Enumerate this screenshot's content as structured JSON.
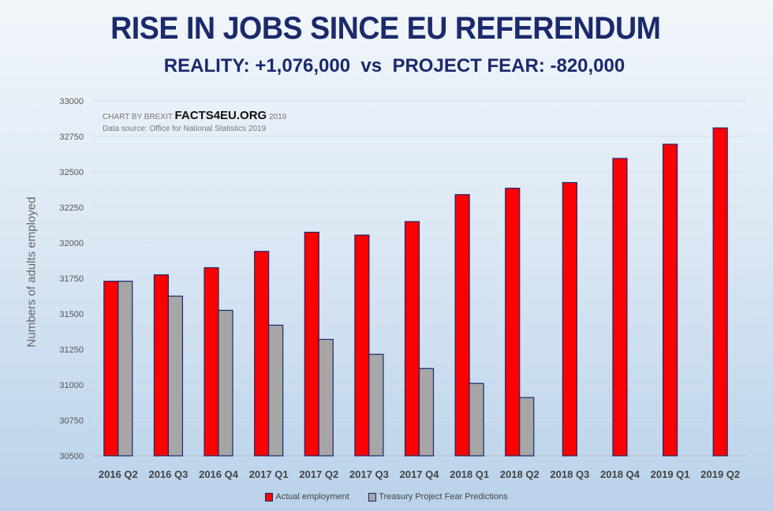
{
  "chart_data": {
    "type": "bar",
    "title": "RISE IN JOBS SINCE EU REFERENDUM",
    "subtitle": "REALITY: +1,076,000  vs  PROJECT FEAR: -820,000",
    "credit_prefix": "CHART BY BREXIT",
    "credit_brand": "FACTS4EU.ORG",
    "credit_year": "2019",
    "source": "Data source: Office for National Statistics 2019",
    "xlabel": "",
    "ylabel": "Numbers of adults employed",
    "ylim": [
      30500,
      33000
    ],
    "yticks": [
      30500,
      30750,
      31000,
      31250,
      31500,
      31750,
      32000,
      32250,
      32500,
      32750,
      33000
    ],
    "grid": true,
    "legend_position": "bottom",
    "categories": [
      "2016 Q2",
      "2016 Q3",
      "2016 Q4",
      "2017 Q1",
      "2017 Q2",
      "2017 Q3",
      "2017 Q4",
      "2018 Q1",
      "2018 Q2",
      "2018 Q3",
      "2018 Q4",
      "2019 Q1",
      "2019 Q2"
    ],
    "series": [
      {
        "name": "Actual employment",
        "color": "#ff0000",
        "values": [
          31730,
          31775,
          31825,
          31940,
          32075,
          32055,
          32150,
          32340,
          32385,
          32425,
          32595,
          32695,
          32810
        ]
      },
      {
        "name": "Treasury Project Fear Predictions",
        "color": "#a6a6a6",
        "values": [
          31730,
          31625,
          31525,
          31420,
          31320,
          31215,
          31115,
          31010,
          30910,
          null,
          null,
          null,
          null
        ]
      }
    ]
  }
}
